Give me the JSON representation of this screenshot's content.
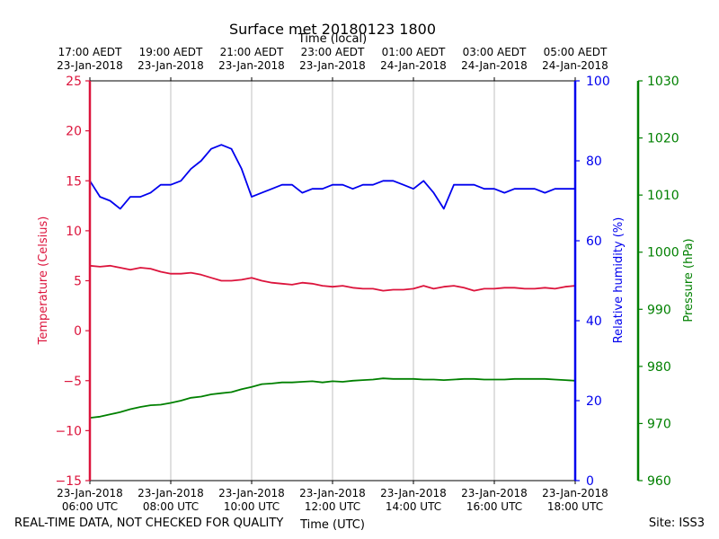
{
  "chart_data": {
    "type": "line",
    "title": "Surface met 20180123 1800",
    "top_xlabel": "Time (local)",
    "xlabel": "Time (UTC)",
    "ylabel_left": "Temperature (Celsius)",
    "ylabel_right": "Relative humidity (%)",
    "ylabel_far_right": "Pressure (hPa)",
    "x_range_utc": [
      "2018-01-23 06:00",
      "2018-01-23 18:00"
    ],
    "ylim_temperature": [
      -15,
      25
    ],
    "ylim_humidity": [
      0,
      100
    ],
    "ylim_pressure": [
      960,
      1030
    ],
    "grid": "vertical lines at bottom x ticks",
    "x_ticks_bottom": [
      {
        "hour": 6,
        "line1": "23-Jan-2018",
        "line2": "06:00 UTC"
      },
      {
        "hour": 8,
        "line1": "23-Jan-2018",
        "line2": "08:00 UTC"
      },
      {
        "hour": 10,
        "line1": "23-Jan-2018",
        "line2": "10:00 UTC"
      },
      {
        "hour": 12,
        "line1": "23-Jan-2018",
        "line2": "12:00 UTC"
      },
      {
        "hour": 14,
        "line1": "23-Jan-2018",
        "line2": "14:00 UTC"
      },
      {
        "hour": 16,
        "line1": "23-Jan-2018",
        "line2": "16:00 UTC"
      },
      {
        "hour": 18,
        "line1": "23-Jan-2018",
        "line2": "18:00 UTC"
      }
    ],
    "x_ticks_top": [
      {
        "hour": 6,
        "line1": "17:00 AEDT",
        "line2": "23-Jan-2018"
      },
      {
        "hour": 8,
        "line1": "19:00 AEDT",
        "line2": "23-Jan-2018"
      },
      {
        "hour": 10,
        "line1": "21:00 AEDT",
        "line2": "23-Jan-2018"
      },
      {
        "hour": 12,
        "line1": "23:00 AEDT",
        "line2": "23-Jan-2018"
      },
      {
        "hour": 14,
        "line1": "01:00 AEDT",
        "line2": "24-Jan-2018"
      },
      {
        "hour": 16,
        "line1": "03:00 AEDT",
        "line2": "24-Jan-2018"
      },
      {
        "hour": 18,
        "line1": "05:00 AEDT",
        "line2": "24-Jan-2018"
      }
    ],
    "y_ticks_temperature": [
      "25",
      "20",
      "15",
      "10",
      "5",
      "0",
      "−5",
      "−10",
      "−15"
    ],
    "y_ticks_humidity": [
      "100",
      "80",
      "60",
      "40",
      "20",
      "0"
    ],
    "y_ticks_pressure": [
      "1030",
      "1020",
      "1010",
      "1000",
      "990",
      "980",
      "970",
      "960"
    ],
    "series": [
      {
        "key": "temperature",
        "axis": "temperature",
        "color": "#dc143c",
        "x": [
          6.0,
          6.25,
          6.5,
          6.75,
          7.0,
          7.25,
          7.5,
          7.75,
          8.0,
          8.25,
          8.5,
          8.75,
          9.0,
          9.25,
          9.5,
          9.75,
          10.0,
          10.25,
          10.5,
          10.75,
          11.0,
          11.25,
          11.5,
          11.75,
          12.0,
          12.25,
          12.5,
          12.75,
          13.0,
          13.25,
          13.5,
          13.75,
          14.0,
          14.25,
          14.5,
          14.75,
          15.0,
          15.25,
          15.5,
          15.75,
          16.0,
          16.25,
          16.5,
          16.75,
          17.0,
          17.25,
          17.5,
          17.75,
          18.0
        ],
        "y": [
          6.5,
          6.4,
          6.5,
          6.3,
          6.1,
          6.3,
          6.2,
          5.9,
          5.7,
          5.7,
          5.8,
          5.6,
          5.3,
          5.0,
          5.0,
          5.1,
          5.3,
          5.0,
          4.8,
          4.7,
          4.6,
          4.8,
          4.7,
          4.5,
          4.4,
          4.5,
          4.3,
          4.2,
          4.2,
          4.0,
          4.1,
          4.1,
          4.2,
          4.5,
          4.2,
          4.4,
          4.5,
          4.3,
          4.0,
          4.2,
          4.2,
          4.3,
          4.3,
          4.2,
          4.2,
          4.3,
          4.2,
          4.4,
          4.5
        ]
      },
      {
        "key": "humidity",
        "axis": "humidity",
        "color": "#0000ee",
        "x": [
          6.0,
          6.25,
          6.5,
          6.75,
          7.0,
          7.25,
          7.5,
          7.75,
          8.0,
          8.25,
          8.5,
          8.75,
          9.0,
          9.25,
          9.5,
          9.75,
          10.0,
          10.25,
          10.5,
          10.75,
          11.0,
          11.25,
          11.5,
          11.75,
          12.0,
          12.25,
          12.5,
          12.75,
          13.0,
          13.25,
          13.5,
          13.75,
          14.0,
          14.25,
          14.5,
          14.75,
          15.0,
          15.25,
          15.5,
          15.75,
          16.0,
          16.25,
          16.5,
          16.75,
          17.0,
          17.25,
          17.5,
          17.75,
          18.0
        ],
        "y": [
          75,
          71,
          70,
          68,
          71,
          71,
          72,
          74,
          74,
          75,
          78,
          80,
          83,
          84,
          83,
          78,
          71,
          72,
          73,
          74,
          74,
          72,
          73,
          73,
          74,
          74,
          73,
          74,
          74,
          75,
          75,
          74,
          73,
          75,
          72,
          68,
          74,
          74,
          74,
          73,
          73,
          72,
          73,
          73,
          73,
          72,
          73,
          73,
          73
        ]
      },
      {
        "key": "pressure",
        "axis": "pressure",
        "color": "#008000",
        "x": [
          6.0,
          6.25,
          6.5,
          6.75,
          7.0,
          7.25,
          7.5,
          7.75,
          8.0,
          8.25,
          8.5,
          8.75,
          9.0,
          9.25,
          9.5,
          9.75,
          10.0,
          10.25,
          10.5,
          10.75,
          11.0,
          11.25,
          11.5,
          11.75,
          12.0,
          12.25,
          12.5,
          12.75,
          13.0,
          13.25,
          13.5,
          13.75,
          14.0,
          14.25,
          14.5,
          14.75,
          15.0,
          15.25,
          15.5,
          15.75,
          16.0,
          16.25,
          16.5,
          16.75,
          17.0,
          17.25,
          17.5,
          17.75,
          18.0
        ],
        "y": [
          971.0,
          971.2,
          971.6,
          972.0,
          972.5,
          972.9,
          973.2,
          973.3,
          973.6,
          974.0,
          974.5,
          974.7,
          975.1,
          975.3,
          975.5,
          976.0,
          976.4,
          976.9,
          977.0,
          977.2,
          977.2,
          977.3,
          977.4,
          977.2,
          977.4,
          977.3,
          977.5,
          977.6,
          977.7,
          977.9,
          977.8,
          977.8,
          977.8,
          977.7,
          977.7,
          977.6,
          977.7,
          977.8,
          977.8,
          977.7,
          977.7,
          977.7,
          977.8,
          977.8,
          977.8,
          977.8,
          977.7,
          977.6,
          977.5
        ]
      }
    ],
    "colors": {
      "temperature_axis": "#dc143c",
      "humidity_axis": "#0000ee",
      "pressure_axis": "#008000"
    }
  },
  "footer": {
    "disclaimer": "REAL-TIME DATA, NOT CHECKED FOR QUALITY",
    "site": "Site: ISS3"
  }
}
